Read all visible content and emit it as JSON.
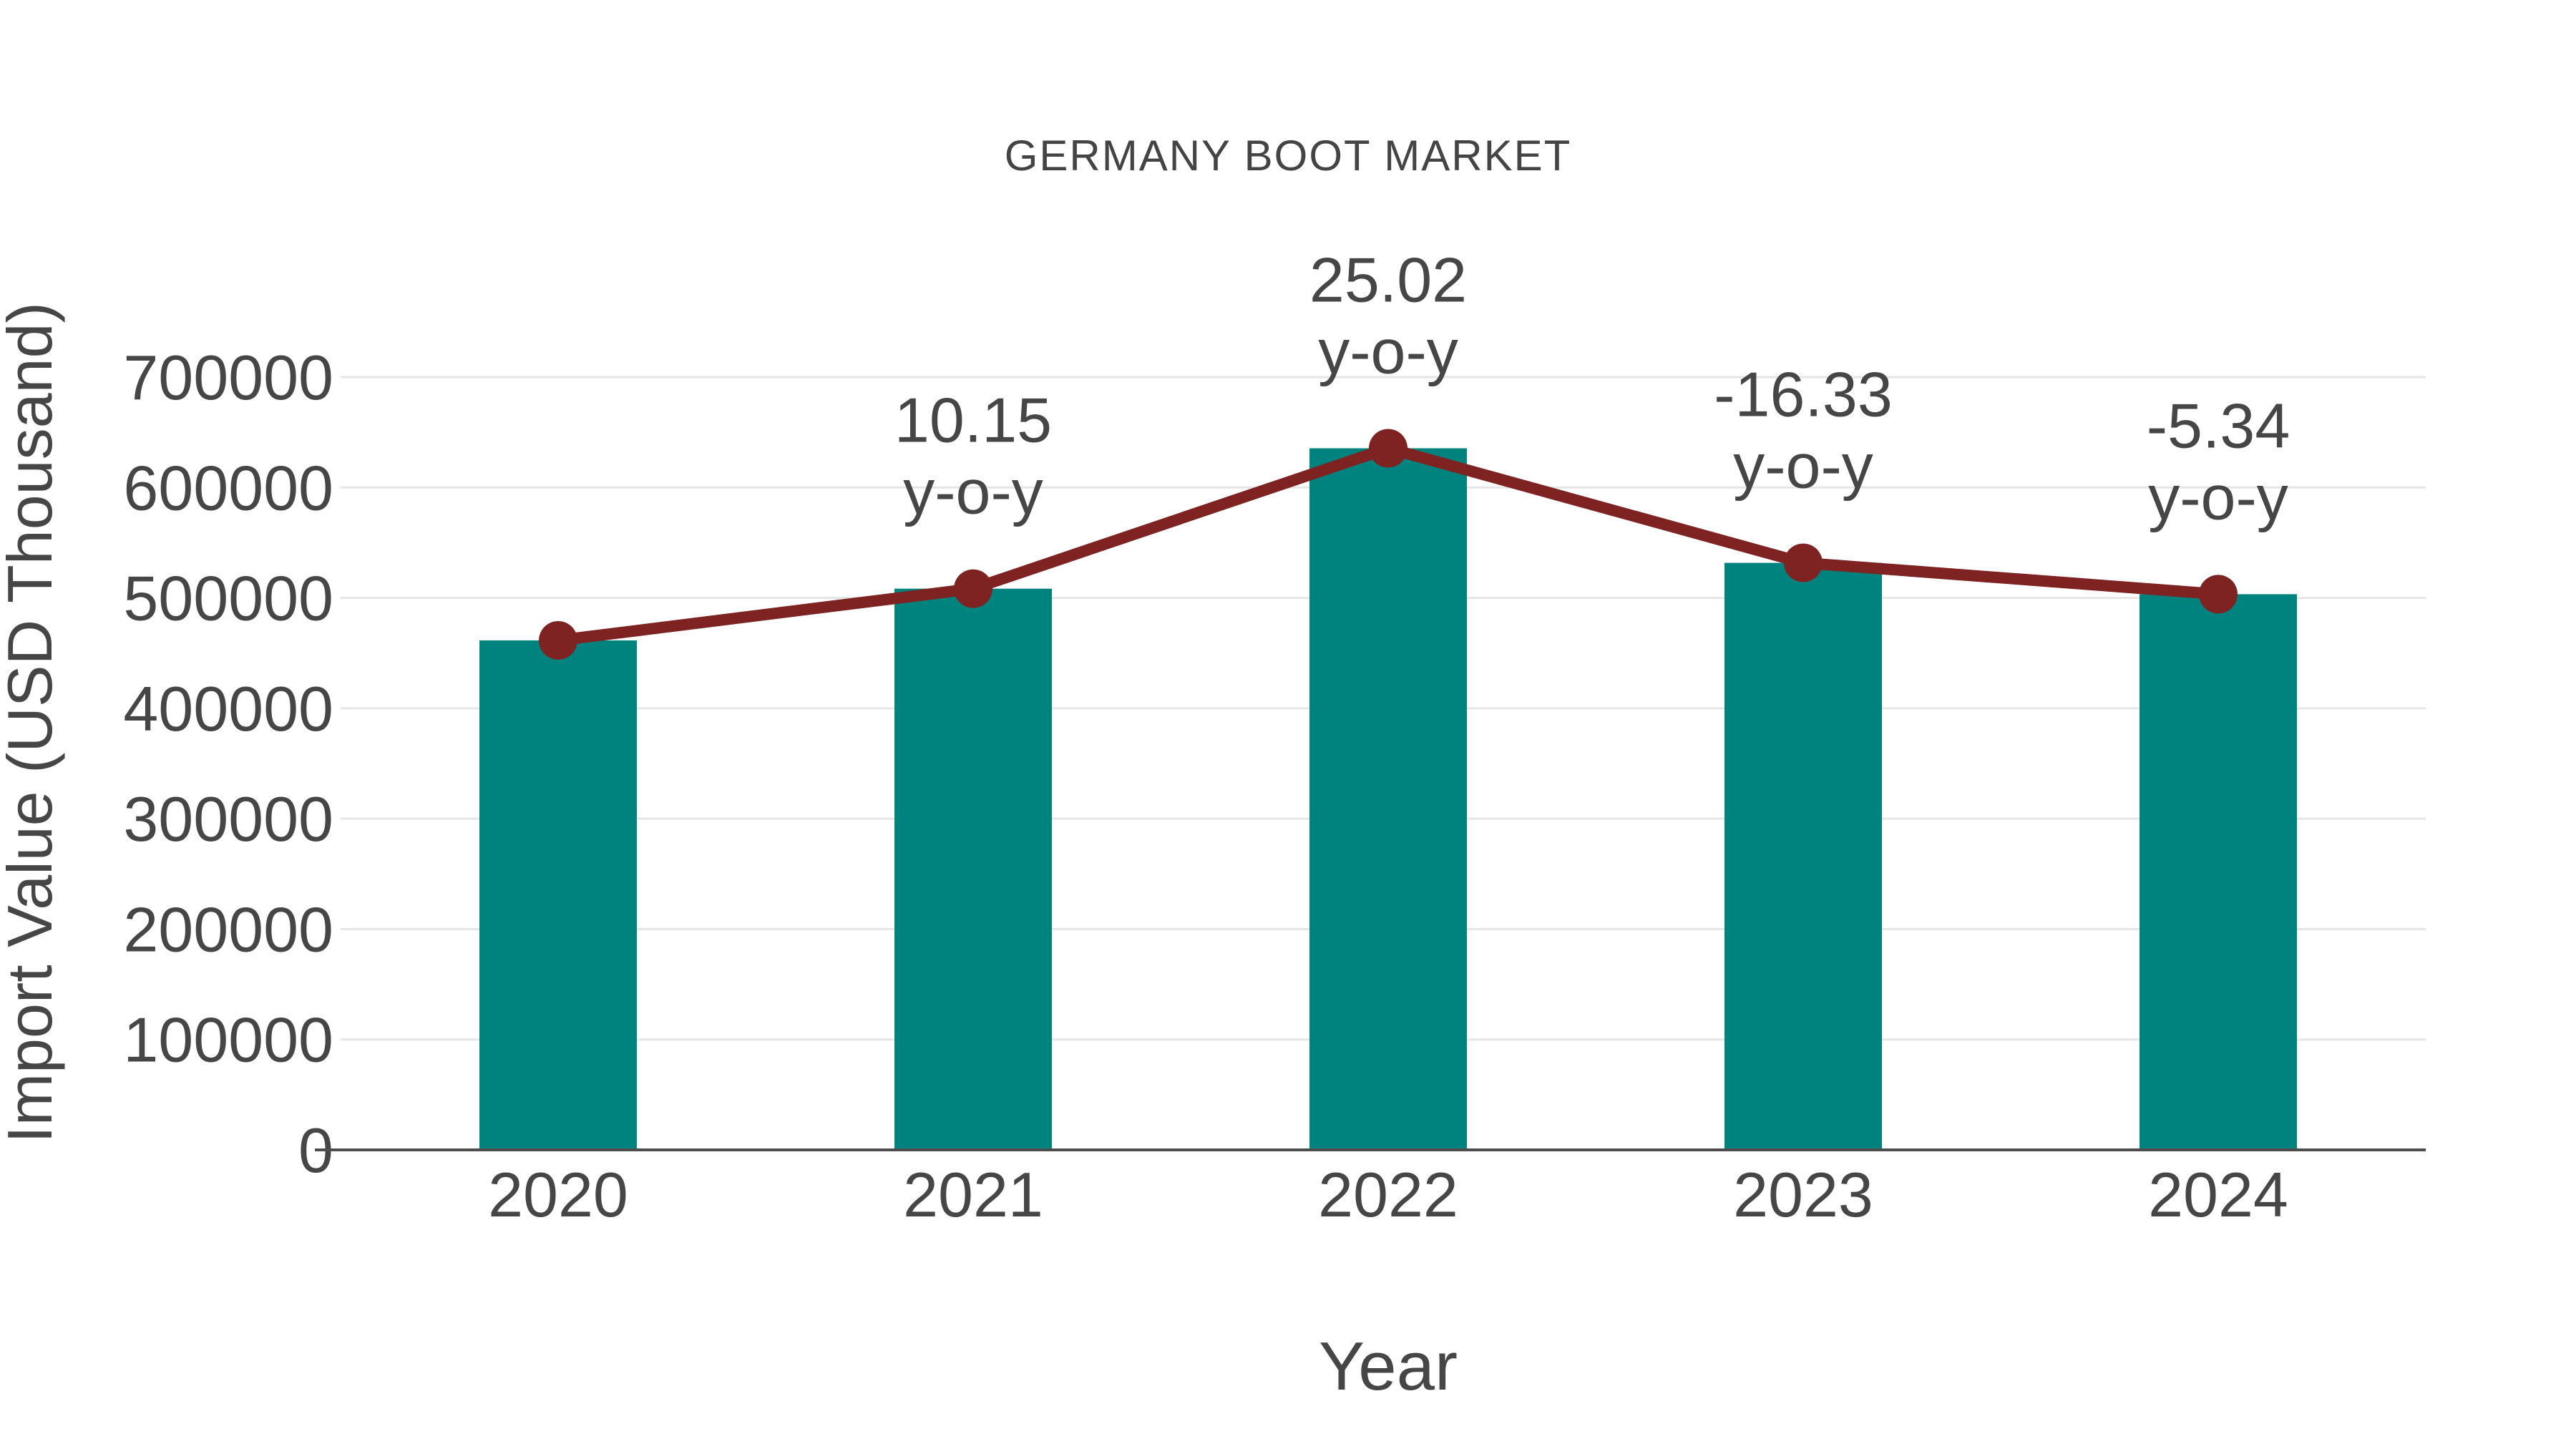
{
  "page": {
    "background": "#ffffff"
  },
  "chart_data": {
    "type": "bar",
    "title": "GERMANY BOOT MARKET",
    "xlabel": "Year",
    "ylabel": "Import Value (USD Thousand)",
    "categories": [
      "2020",
      "2021",
      "2022",
      "2023",
      "2024"
    ],
    "series": [
      {
        "name": "Import Value",
        "type": "bar",
        "color": "#00827E",
        "values": [
          461500,
          508350,
          635530,
          531750,
          503350
        ]
      },
      {
        "name": "y-o-y change line",
        "type": "line",
        "color": "#7E2222",
        "values": [
          461500,
          508350,
          635530,
          531750,
          503350
        ],
        "point_labels": [
          null,
          "10.15",
          "25.02",
          "-16.33",
          "-5.34"
        ],
        "point_label_suffix": "y-o-y"
      }
    ],
    "ylim": [
      0,
      700000
    ],
    "ytick_step": 100000,
    "grid": true,
    "legend_position": "none",
    "colors": {
      "text": "#464646",
      "grid": "#E6E6E6",
      "axis": "#4D4D4D"
    }
  }
}
